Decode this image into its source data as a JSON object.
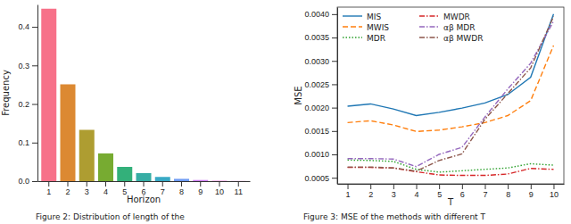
{
  "chart_data": [
    {
      "type": "bar",
      "title": "Figure 2: Distribution of length of the",
      "x_label": "Horizon",
      "y_label": "Frequency",
      "categories": [
        "1",
        "2",
        "3",
        "4",
        "5",
        "6",
        "7",
        "8",
        "9",
        "10",
        "11"
      ],
      "values": [
        0.447,
        0.251,
        0.133,
        0.072,
        0.037,
        0.021,
        0.011,
        0.006,
        0.003,
        0.001,
        0.0005
      ],
      "colors": [
        "#f77189",
        "#dc8932",
        "#ae9d31",
        "#77ab31",
        "#33b07a",
        "#36ada4",
        "#38a9c5",
        "#6e9bf4",
        "#cc7af4",
        "#f565cc",
        "#f66fa8"
      ],
      "ylim": [
        0,
        0.458
      ],
      "yticks": [
        {
          "value": 0,
          "label": "0.0"
        },
        0.1,
        0.2,
        0.3,
        0.4
      ]
    },
    {
      "type": "line",
      "title": "Figure 3: MSE of the methods with different T",
      "x_label": "T",
      "y_label": "MSE",
      "x": [
        1,
        2,
        3,
        4,
        5,
        6,
        7,
        8,
        9,
        10
      ],
      "xlim": [
        0.55,
        10.45
      ],
      "xticks": [
        1,
        2,
        3,
        4,
        5,
        6,
        7,
        8,
        9,
        10
      ],
      "ylim": [
        0.00037,
        0.00415
      ],
      "yticks": [
        {
          "value": 0.0005,
          "label": "0.0005"
        },
        {
          "value": 0.001,
          "label": "0.0010"
        },
        {
          "value": 0.0015,
          "label": "0.0015"
        },
        {
          "value": 0.002,
          "label": "0.0020"
        },
        {
          "value": 0.0025,
          "label": "0.0025"
        },
        {
          "value": 0.003,
          "label": "0.0030"
        },
        {
          "value": 0.0035,
          "label": "0.0035"
        },
        {
          "value": 0.004,
          "label": "0.0040"
        }
      ],
      "legend": "upper left",
      "series": [
        {
          "name": "MIS",
          "color": "#1f77b4",
          "line_style": "solid",
          "values": [
            0.00203,
            0.00208,
            0.00197,
            0.00183,
            0.0019,
            0.00199,
            0.0021,
            0.00228,
            0.00265,
            0.004
          ]
        },
        {
          "name": "MWIS",
          "color": "#ff7f0e",
          "line_style": "dashed",
          "values": [
            0.00168,
            0.00172,
            0.00163,
            0.00149,
            0.00152,
            0.00159,
            0.00168,
            0.00183,
            0.00215,
            0.00333
          ]
        },
        {
          "name": "MDR",
          "color": "#2ca02c",
          "line_style": "dotted",
          "values": [
            0.00088,
            0.00087,
            0.00085,
            0.00068,
            0.00062,
            0.00065,
            0.00068,
            0.00071,
            0.0008,
            0.00077
          ]
        },
        {
          "name": "MWDR",
          "color": "#d62728",
          "line_style": "dashdot",
          "values": [
            0.00072,
            0.00072,
            0.00071,
            0.00063,
            0.00056,
            0.00055,
            0.00055,
            0.00058,
            0.0007,
            0.00068
          ]
        },
        {
          "name": "αβ MDR",
          "color": "#9467bd",
          "line_style": "dashdot",
          "values": [
            0.00091,
            0.00091,
            0.0009,
            0.00074,
            0.001,
            0.00115,
            0.0018,
            0.0024,
            0.00295,
            0.00385
          ]
        },
        {
          "name": "αβ MWDR",
          "color": "#8c564b",
          "line_style": "dashdot",
          "values": [
            0.00073,
            0.00073,
            0.00071,
            0.00064,
            0.00087,
            0.00101,
            0.00175,
            0.0023,
            0.00285,
            0.00395
          ]
        }
      ]
    }
  ]
}
